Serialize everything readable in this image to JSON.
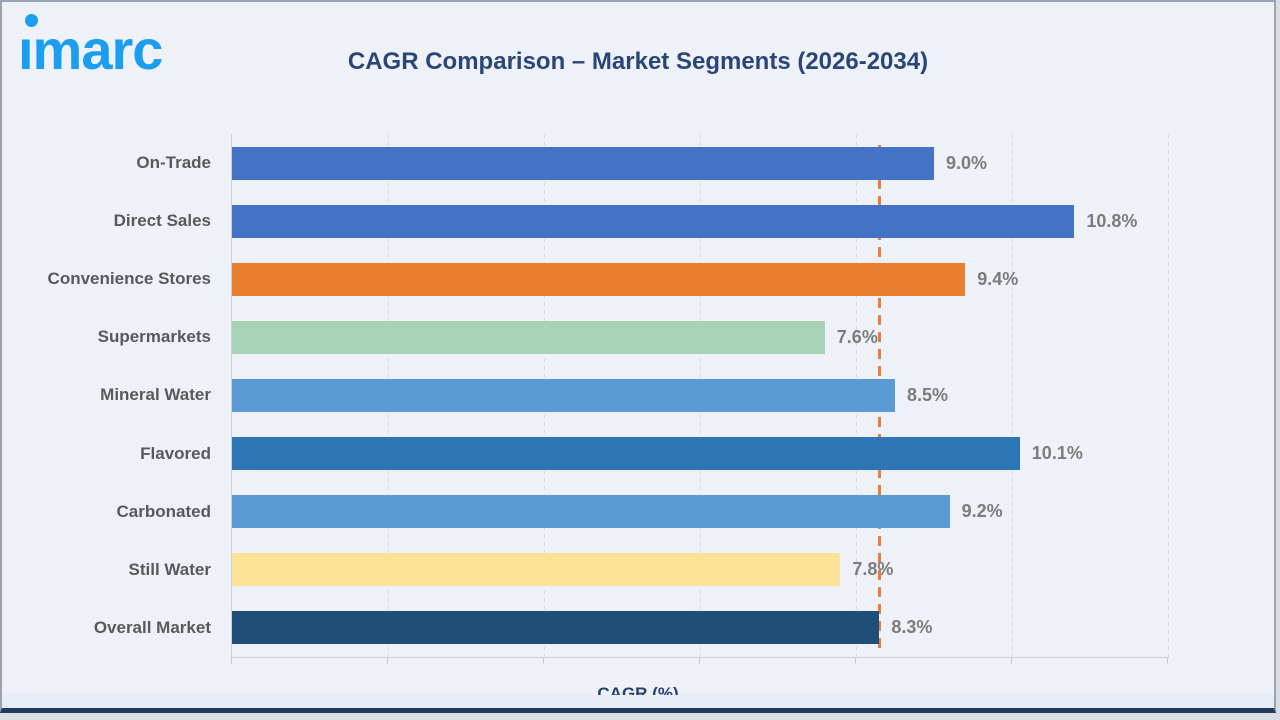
{
  "brand": {
    "logo_text": "imarc",
    "logo_color": "#1B9DF0"
  },
  "header": {
    "title": "CAGR Comparison – Market Segments (2026-2034)",
    "title_color": "#2A4678"
  },
  "chart_data": {
    "type": "bar",
    "orientation": "horizontal",
    "title": "CAGR Comparison – Market Segments (2026-2034)",
    "xlabel": "CAGR (%)",
    "ylabel": "",
    "xlim": [
      0,
      12
    ],
    "gridline_step": 2,
    "grid": true,
    "legend": false,
    "categories": [
      "On-Trade",
      "Direct Sales",
      "Convenience Stores",
      "Supermarkets",
      "Mineral Water",
      "Flavored",
      "Carbonated",
      "Still Water",
      "Overall Market"
    ],
    "values": [
      9.0,
      10.8,
      9.4,
      7.6,
      8.5,
      10.1,
      9.2,
      7.8,
      8.3
    ],
    "value_labels": [
      "9.0%",
      "10.8%",
      "9.4%",
      "7.6%",
      "8.5%",
      "10.1%",
      "9.2%",
      "7.8%",
      "8.3%"
    ],
    "bar_colors": [
      "#4472C4",
      "#4472C4",
      "#E87E2E",
      "#A7D3B4",
      "#5B9BD5",
      "#2E75B6",
      "#5B9BD5",
      "#FBE294",
      "#1F4E79"
    ],
    "category_label_color": "#58595B",
    "value_label_color": "#7C7C7C",
    "gridline_color": "#D7DCE5",
    "reference_line": {
      "value": 8.3,
      "color": "#E87D3C",
      "style": "dashed"
    }
  }
}
